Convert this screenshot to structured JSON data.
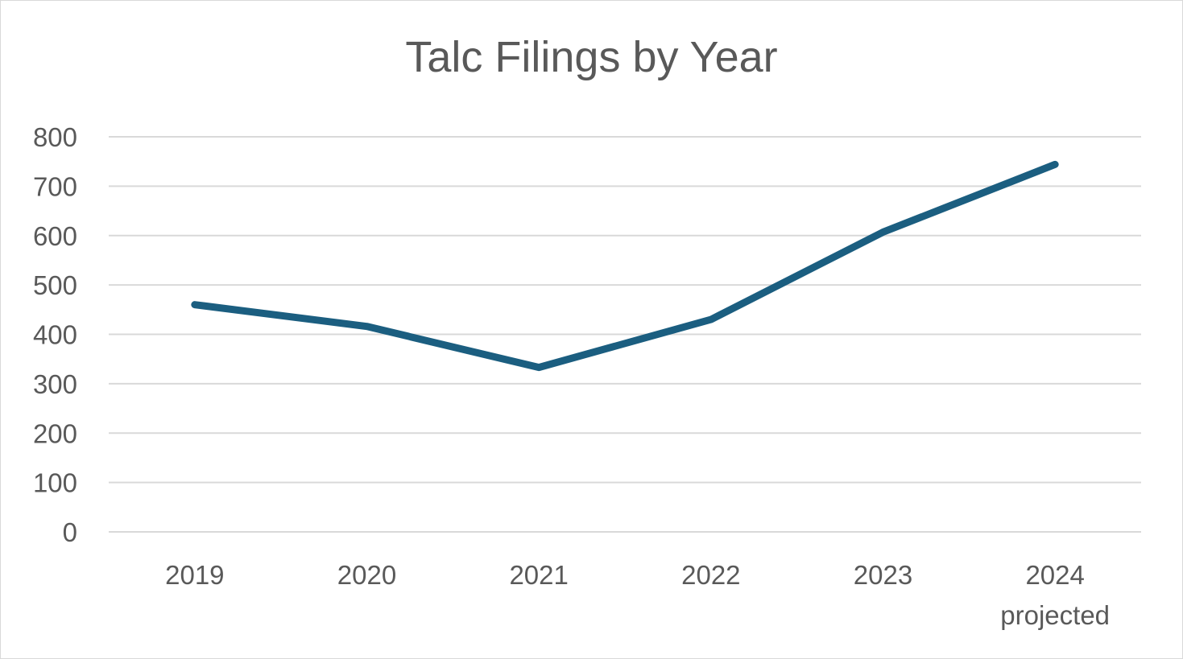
{
  "chart_data": {
    "type": "line",
    "title": "Talc Filings by Year",
    "categories": [
      "2019",
      "2020",
      "2021",
      "2022",
      "2023",
      "2024"
    ],
    "category_sublabels": [
      "",
      "",
      "",
      "",
      "",
      "projected"
    ],
    "series": [
      {
        "values": [
          460,
          416,
          333,
          430,
          607,
          744
        ]
      }
    ],
    "y_ticks": [
      "0",
      "100",
      "200",
      "300",
      "400",
      "500",
      "600",
      "700",
      "800"
    ],
    "ylim": [
      0,
      800
    ],
    "grid": true,
    "legend": "none",
    "colors": {
      "line": "#1b5e80",
      "grid": "#d9d9d9",
      "text": "#595959"
    }
  }
}
